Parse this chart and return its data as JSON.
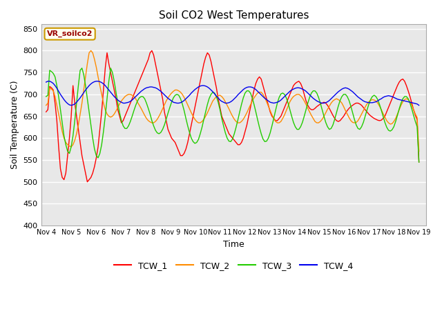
{
  "title": "Soil CO2 West Temperatures",
  "xlabel": "Time",
  "ylabel": "Soil Temperature (C)",
  "ylim": [
    400,
    860
  ],
  "yticks": [
    400,
    450,
    500,
    550,
    600,
    650,
    700,
    750,
    800,
    850
  ],
  "xtick_labels": [
    "Nov 4",
    "Nov 5",
    "Nov 6",
    "Nov 7",
    "Nov 8",
    "Nov 9",
    "Nov 10",
    "Nov 11",
    "Nov 12",
    "Nov 13",
    "Nov 14",
    "Nov 15",
    "Nov 16",
    "Nov 17",
    "Nov 18",
    "Nov 19"
  ],
  "annotation": "VR_soilco2",
  "legend_entries": [
    "TCW_1",
    "TCW_2",
    "TCW_3",
    "TCW_4"
  ],
  "line_colors": [
    "#ff0000",
    "#ff8c00",
    "#22cc00",
    "#0000ee"
  ],
  "title_fontsize": 11,
  "TCW_1": [
    660,
    665,
    718,
    715,
    710,
    680,
    640,
    580,
    530,
    510,
    505,
    520,
    560,
    600,
    650,
    720,
    680,
    650,
    620,
    590,
    560,
    540,
    520,
    500,
    505,
    510,
    520,
    535,
    555,
    580,
    620,
    660,
    710,
    760,
    795,
    770,
    750,
    730,
    710,
    690,
    665,
    650,
    635,
    640,
    650,
    660,
    670,
    680,
    690,
    700,
    710,
    720,
    730,
    740,
    750,
    760,
    770,
    780,
    795,
    800,
    790,
    770,
    750,
    730,
    710,
    690,
    660,
    640,
    620,
    610,
    600,
    595,
    590,
    580,
    570,
    560,
    560,
    565,
    575,
    590,
    610,
    630,
    650,
    670,
    690,
    710,
    730,
    750,
    770,
    785,
    795,
    790,
    775,
    755,
    735,
    715,
    690,
    670,
    650,
    640,
    630,
    620,
    610,
    605,
    600,
    595,
    590,
    585,
    585,
    590,
    600,
    615,
    630,
    650,
    670,
    690,
    710,
    725,
    735,
    740,
    735,
    720,
    705,
    690,
    675,
    660,
    650,
    645,
    640,
    640,
    645,
    650,
    660,
    670,
    680,
    690,
    700,
    710,
    720,
    725,
    728,
    730,
    725,
    715,
    700,
    685,
    675,
    668,
    665,
    665,
    668,
    672,
    675,
    678,
    680,
    682,
    680,
    675,
    668,
    660,
    652,
    645,
    640,
    638,
    640,
    645,
    650,
    657,
    663,
    668,
    672,
    675,
    678,
    680,
    680,
    678,
    675,
    670,
    665,
    660,
    655,
    651,
    648,
    645,
    643,
    641,
    640,
    641,
    645,
    650,
    660,
    670,
    680,
    690,
    700,
    710,
    720,
    728,
    733,
    735,
    730,
    720,
    708,
    695,
    680,
    665,
    652,
    642,
    545
  ],
  "TCW_2": [
    675,
    680,
    715,
    712,
    708,
    695,
    675,
    655,
    635,
    615,
    600,
    590,
    585,
    582,
    580,
    585,
    595,
    610,
    630,
    655,
    680,
    710,
    740,
    770,
    795,
    800,
    795,
    780,
    762,
    740,
    720,
    700,
    680,
    665,
    655,
    650,
    648,
    650,
    655,
    662,
    670,
    678,
    685,
    690,
    695,
    698,
    700,
    700,
    698,
    695,
    690,
    682,
    675,
    668,
    660,
    652,
    645,
    640,
    637,
    635,
    635,
    638,
    643,
    650,
    658,
    667,
    676,
    685,
    692,
    698,
    703,
    707,
    710,
    710,
    708,
    705,
    700,
    693,
    685,
    676,
    667,
    658,
    650,
    643,
    638,
    635,
    635,
    638,
    643,
    650,
    658,
    667,
    676,
    685,
    690,
    695,
    697,
    698,
    695,
    690,
    683,
    675,
    667,
    658,
    650,
    643,
    638,
    635,
    635,
    638,
    643,
    650,
    658,
    667,
    676,
    685,
    692,
    698,
    703,
    705,
    705,
    700,
    693,
    683,
    673,
    663,
    653,
    645,
    638,
    635,
    635,
    638,
    645,
    653,
    663,
    673,
    683,
    690,
    695,
    698,
    700,
    700,
    697,
    692,
    685,
    677,
    668,
    660,
    652,
    645,
    638,
    635,
    635,
    638,
    643,
    650,
    658,
    666,
    673,
    680,
    685,
    688,
    690,
    688,
    685,
    680,
    672,
    663,
    655,
    647,
    640,
    636,
    635,
    636,
    640,
    647,
    655,
    663,
    671,
    678,
    683,
    686,
    688,
    687,
    685,
    680,
    673,
    665,
    656,
    648,
    640,
    635,
    632,
    633,
    638,
    645,
    655,
    665,
    675,
    683,
    688,
    690,
    688,
    683,
    675,
    665,
    655,
    647,
    570
  ],
  "TCW_3": [
    695,
    698,
    755,
    752,
    748,
    740,
    720,
    695,
    665,
    635,
    605,
    585,
    570,
    565,
    580,
    605,
    640,
    680,
    720,
    755,
    760,
    745,
    720,
    690,
    660,
    630,
    600,
    575,
    560,
    555,
    565,
    585,
    615,
    650,
    690,
    730,
    760,
    750,
    730,
    705,
    680,
    658,
    640,
    628,
    622,
    622,
    628,
    638,
    650,
    663,
    675,
    685,
    692,
    695,
    695,
    690,
    680,
    668,
    655,
    640,
    628,
    618,
    612,
    610,
    613,
    620,
    630,
    643,
    657,
    670,
    682,
    692,
    698,
    700,
    698,
    690,
    678,
    663,
    645,
    628,
    613,
    600,
    592,
    588,
    590,
    597,
    610,
    625,
    643,
    660,
    677,
    691,
    700,
    705,
    703,
    695,
    682,
    665,
    645,
    628,
    612,
    600,
    593,
    592,
    598,
    610,
    625,
    642,
    660,
    677,
    692,
    703,
    708,
    708,
    703,
    692,
    677,
    660,
    642,
    625,
    610,
    598,
    592,
    593,
    600,
    612,
    628,
    645,
    663,
    680,
    693,
    701,
    703,
    700,
    692,
    680,
    665,
    650,
    636,
    626,
    620,
    620,
    626,
    636,
    650,
    665,
    680,
    693,
    703,
    708,
    708,
    703,
    693,
    680,
    665,
    650,
    636,
    626,
    620,
    622,
    630,
    643,
    658,
    673,
    686,
    695,
    700,
    700,
    695,
    686,
    673,
    658,
    643,
    630,
    622,
    620,
    626,
    636,
    650,
    664,
    677,
    688,
    695,
    698,
    695,
    688,
    677,
    664,
    650,
    636,
    625,
    618,
    616,
    619,
    626,
    638,
    652,
    667,
    680,
    690,
    695,
    695,
    690,
    680,
    667,
    652,
    638,
    626,
    545
  ],
  "TCW_4": [
    728,
    730,
    730,
    728,
    725,
    720,
    714,
    707,
    700,
    694,
    688,
    683,
    679,
    676,
    675,
    676,
    678,
    682,
    687,
    692,
    698,
    704,
    710,
    715,
    720,
    724,
    727,
    729,
    730,
    730,
    729,
    727,
    724,
    720,
    715,
    710,
    705,
    700,
    695,
    691,
    687,
    684,
    682,
    680,
    680,
    681,
    682,
    684,
    687,
    691,
    695,
    699,
    703,
    707,
    710,
    713,
    715,
    716,
    717,
    717,
    716,
    715,
    713,
    710,
    707,
    703,
    699,
    695,
    691,
    688,
    685,
    682,
    681,
    680,
    680,
    681,
    683,
    686,
    690,
    694,
    698,
    703,
    707,
    711,
    714,
    717,
    719,
    720,
    720,
    719,
    717,
    714,
    710,
    706,
    701,
    696,
    692,
    687,
    684,
    682,
    680,
    680,
    681,
    683,
    686,
    690,
    694,
    699,
    703,
    707,
    711,
    714,
    716,
    717,
    717,
    716,
    714,
    711,
    707,
    703,
    699,
    695,
    691,
    688,
    685,
    682,
    681,
    680,
    681,
    682,
    684,
    687,
    691,
    695,
    699,
    703,
    707,
    710,
    712,
    714,
    715,
    715,
    714,
    712,
    710,
    707,
    703,
    699,
    695,
    691,
    688,
    685,
    683,
    681,
    680,
    680,
    681,
    683,
    686,
    690,
    694,
    698,
    702,
    706,
    709,
    712,
    714,
    715,
    714,
    712,
    709,
    706,
    702,
    698,
    694,
    691,
    688,
    685,
    683,
    682,
    681,
    681,
    681,
    682,
    683,
    685,
    688,
    690,
    693,
    695,
    696,
    697,
    696,
    695,
    693,
    691,
    689,
    688,
    687,
    686,
    685,
    684,
    683,
    682,
    681,
    680,
    679,
    678,
    675
  ]
}
